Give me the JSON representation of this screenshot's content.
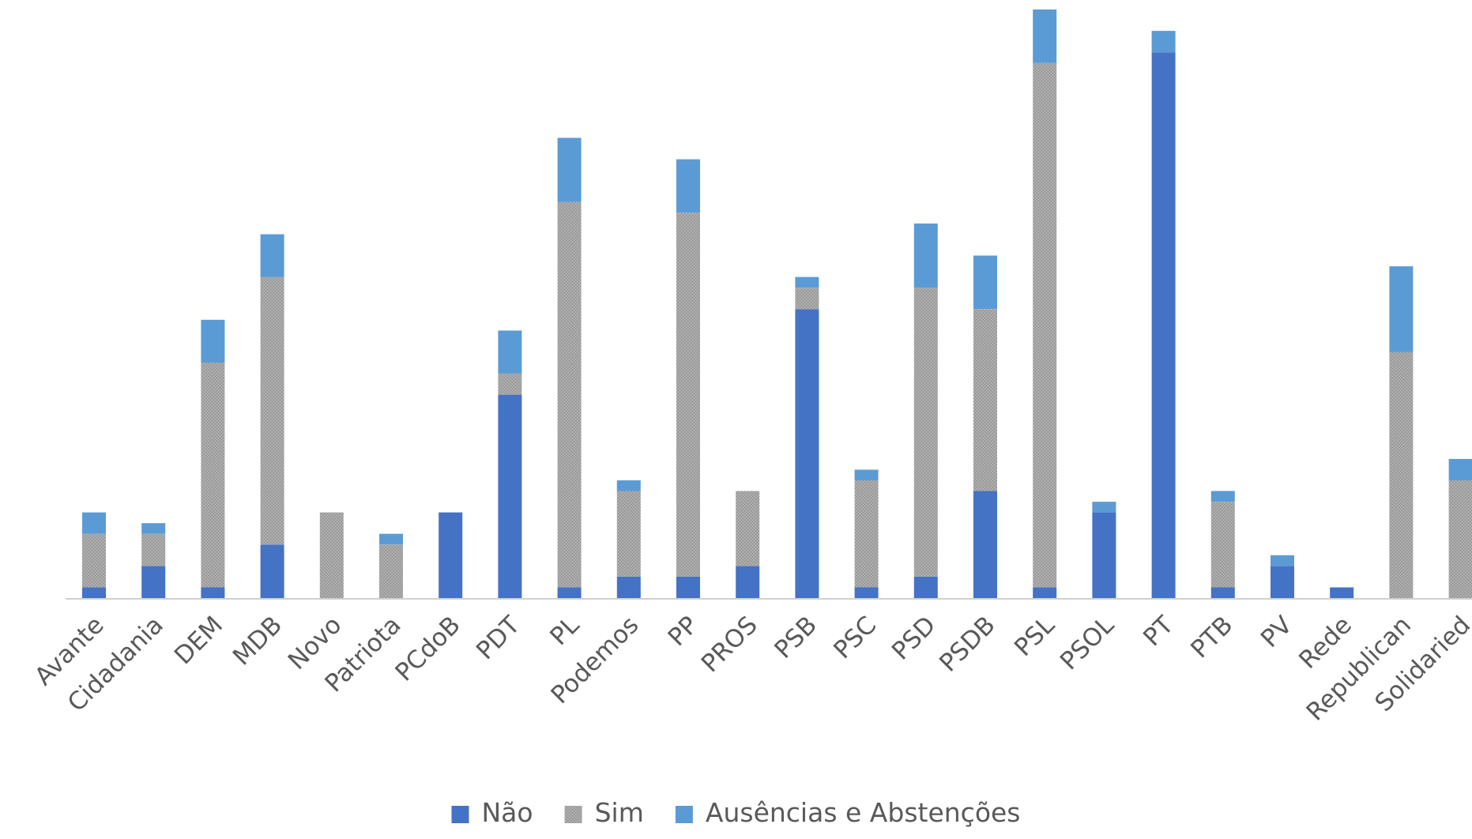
{
  "chart_data": {
    "type": "bar",
    "stacked": true,
    "title": "",
    "xlabel": "",
    "ylabel": "",
    "categories": [
      "Avante",
      "Cidadania",
      "DEM",
      "MDB",
      "Novo",
      "Patriota",
      "PCdoB",
      "PDT",
      "PL",
      "Podemos",
      "PP",
      "PROS",
      "PSB",
      "PSC",
      "PSD",
      "PSDB",
      "PSL",
      "PSOL",
      "PT",
      "PTB",
      "PV",
      "Rede",
      "Republican",
      "Solidaried"
    ],
    "series": [
      {
        "name": "Não",
        "color": "#4472c4",
        "values": [
          1,
          3,
          1,
          5,
          0,
          0,
          8,
          19,
          1,
          2,
          2,
          3,
          27,
          1,
          2,
          10,
          1,
          8,
          51,
          1,
          3,
          1,
          0,
          0
        ]
      },
      {
        "name": "Sim",
        "color": "#a5a5a5",
        "pattern": true,
        "values": [
          5,
          3,
          21,
          25,
          8,
          5,
          0,
          2,
          36,
          8,
          34,
          7,
          2,
          10,
          27,
          17,
          49,
          0,
          0,
          8,
          0,
          0,
          23,
          11
        ]
      },
      {
        "name": "Ausências e Abstenções",
        "color": "#5b9bd5",
        "values": [
          2,
          1,
          4,
          4,
          0,
          1,
          0,
          4,
          6,
          1,
          5,
          0,
          1,
          1,
          6,
          5,
          5,
          1,
          2,
          1,
          1,
          0,
          8,
          2
        ]
      }
    ],
    "ylim": [
      0,
      55
    ],
    "grid": false,
    "y_axis_visible": false,
    "legend": {
      "position": "bottom"
    }
  }
}
